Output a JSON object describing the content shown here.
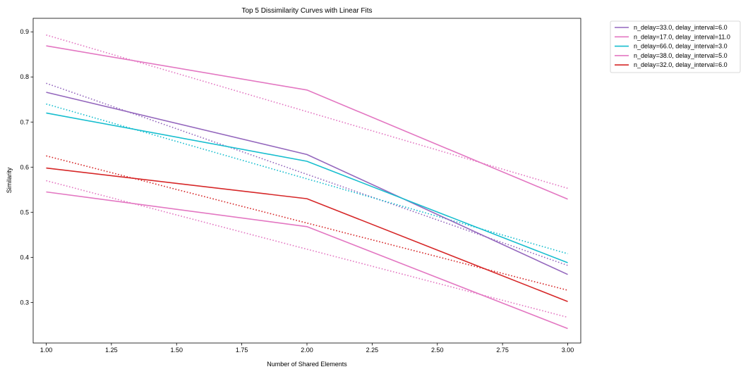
{
  "chart_data": {
    "type": "line",
    "title": "Top 5 Dissimilarity Curves with Linear Fits",
    "xlabel": "Number of Shared Elements",
    "ylabel": "Similarity",
    "xlim": [
      0.95,
      3.05
    ],
    "ylim": [
      0.21,
      0.93
    ],
    "xticks": [
      "1.00",
      "1.25",
      "1.50",
      "1.75",
      "2.00",
      "2.25",
      "2.50",
      "2.75",
      "3.00"
    ],
    "yticks": [
      "0.3",
      "0.4",
      "0.5",
      "0.6",
      "0.7",
      "0.8",
      "0.9"
    ],
    "x": [
      1,
      2,
      3
    ],
    "grid": false,
    "legend_position": "outside top-right",
    "series": [
      {
        "name": "n_delay=33.0, delay_interval=6.0",
        "color": "#9467bd",
        "values": [
          0.766,
          0.628,
          0.362
        ],
        "fit": [
          0.786,
          0.584,
          0.382
        ]
      },
      {
        "name": "n_delay=17.0, delay_interval=11.0",
        "color": "#e377c2",
        "values": [
          0.869,
          0.771,
          0.529
        ],
        "fit": [
          0.893,
          0.723,
          0.553
        ]
      },
      {
        "name": "n_delay=66.0, delay_interval=3.0",
        "color": "#17becf",
        "values": [
          0.72,
          0.613,
          0.388
        ],
        "fit": [
          0.74,
          0.574,
          0.408
        ]
      },
      {
        "name": "n_delay=38.0, delay_interval=5.0",
        "color": "#e377c2",
        "values": [
          0.545,
          0.468,
          0.242
        ],
        "fit": [
          0.57,
          0.418,
          0.267
        ]
      },
      {
        "name": "n_delay=32.0, delay_interval=6.0",
        "color": "#d62728",
        "values": [
          0.598,
          0.53,
          0.302
        ],
        "fit": [
          0.625,
          0.476,
          0.327
        ]
      }
    ]
  }
}
